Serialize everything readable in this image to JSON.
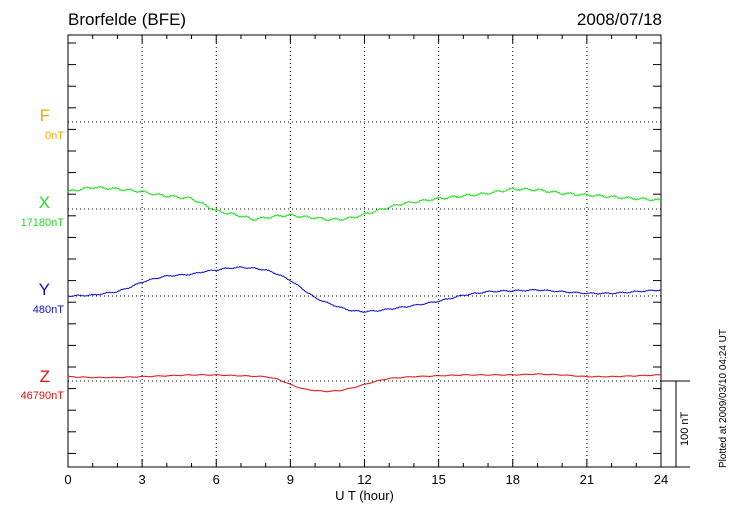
{
  "header": {
    "station": "Brorfelde (BFE)",
    "date": "2008/07/18"
  },
  "footer": {
    "plotted_note": "Plotted at 2009/03/10 04:24 UT",
    "scale_label": "100 nT"
  },
  "colors": {
    "F": "#f0a800",
    "X": "#20e020",
    "Y": "#1010d0",
    "Z": "#e01010"
  },
  "chart_data": {
    "type": "line",
    "title": "Brorfelde (BFE)",
    "date_label": "2008/07/18",
    "xlabel": "U T (hour)",
    "xlim": [
      0,
      24
    ],
    "xticks": [
      0,
      3,
      6,
      9,
      12,
      15,
      18,
      21,
      24
    ],
    "grid": true,
    "scale_bar_nT": 100,
    "series": [
      {
        "name": "F",
        "baseline_label": "0nT",
        "color": "#f0a800",
        "x": [],
        "y": []
      },
      {
        "name": "X",
        "baseline_label": "17180nT",
        "color": "#20e020",
        "x": [
          0,
          1,
          2,
          3,
          3.5,
          4,
          5,
          5.5,
          6,
          6.5,
          7,
          7.5,
          8,
          8.5,
          9,
          9.5,
          10,
          10.5,
          11,
          11.5,
          12,
          12.5,
          13,
          13.5,
          14,
          15,
          16,
          17,
          18,
          19,
          20,
          21,
          22,
          23,
          24
        ],
        "y": [
          17200,
          17205,
          17203,
          17200,
          17197,
          17195,
          17192,
          17185,
          17178,
          17175,
          17172,
          17168,
          17170,
          17172,
          17173,
          17171,
          17170,
          17168,
          17168,
          17170,
          17174,
          17178,
          17182,
          17186,
          17188,
          17192,
          17195,
          17198,
          17203,
          17202,
          17198,
          17196,
          17194,
          17192,
          17190
        ]
      },
      {
        "name": "Y",
        "baseline_label": "480nT",
        "color": "#1010d0",
        "x": [
          0,
          1,
          2,
          2.5,
          3,
          3.5,
          4,
          5,
          5.5,
          6,
          6.5,
          7,
          7.5,
          8,
          8.5,
          9,
          9.5,
          10,
          10.5,
          11,
          11.5,
          12,
          12.5,
          13,
          14,
          15,
          16,
          17,
          18,
          19,
          20,
          21,
          22,
          23,
          24
        ],
        "y": [
          480,
          481,
          485,
          490,
          496,
          500,
          503,
          505,
          508,
          510,
          512,
          513,
          512,
          510,
          505,
          498,
          488,
          478,
          472,
          467,
          463,
          462,
          463,
          465,
          469,
          474,
          481,
          485,
          486,
          487,
          485,
          483,
          483,
          485,
          487
        ]
      },
      {
        "name": "Z",
        "baseline_label": "46790nT",
        "color": "#e01010",
        "x": [
          0,
          1,
          2,
          3,
          4,
          5,
          6,
          7,
          8,
          8.5,
          9,
          9.5,
          10,
          10.5,
          11,
          11.5,
          12,
          12.5,
          13,
          14,
          15,
          16,
          17,
          18,
          19,
          20,
          21,
          22,
          23,
          24
        ],
        "y": [
          46795,
          46794,
          46794,
          46795,
          46796,
          46797,
          46797,
          46796,
          46795,
          46792,
          46786,
          46781,
          46779,
          46778,
          46779,
          46782,
          46786,
          46790,
          46793,
          46795,
          46796,
          46797,
          46797,
          46797,
          46798,
          46797,
          46795,
          46795,
          46796,
          46797
        ]
      }
    ]
  }
}
